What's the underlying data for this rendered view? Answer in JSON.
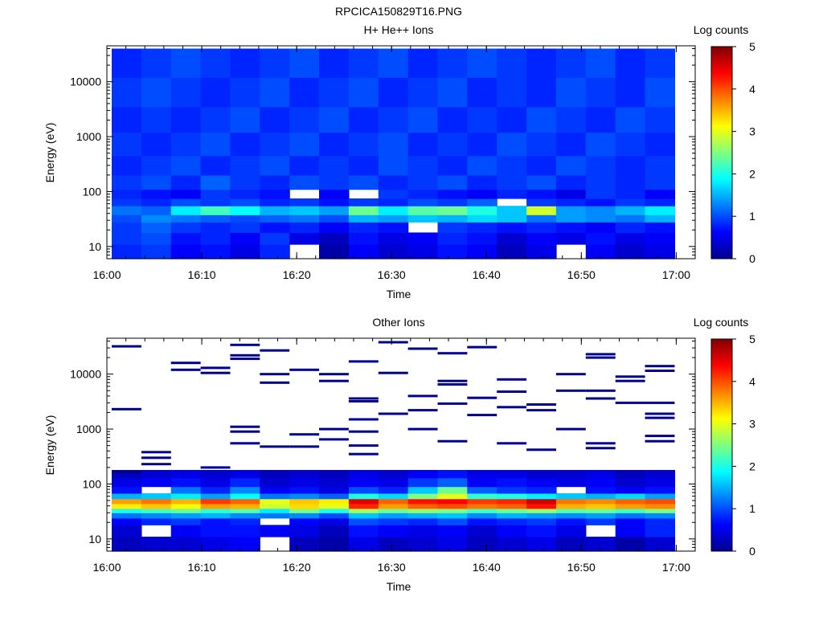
{
  "figure_title": "RPCICA150829T16.PNG",
  "chart_data": [
    {
      "type": "heatmap",
      "title": "H+ He++ Ions",
      "xlabel": "Time",
      "ylabel": "Energy (eV)",
      "x_ticks": [
        "16:00",
        "16:10",
        "16:20",
        "16:30",
        "16:40",
        "16:50",
        "17:00"
      ],
      "x_range": [
        "16:00",
        "17:02"
      ],
      "y_scale": "log",
      "y_ticks": [
        "10",
        "100",
        "1000",
        "10000"
      ],
      "y_range": [
        6,
        45000
      ],
      "colorbar": {
        "label": "Log counts",
        "ticks": [
          "0",
          "1",
          "2",
          "3",
          "4",
          "5"
        ],
        "range": [
          0,
          5
        ]
      },
      "time_bins": 19,
      "energy_bands": [
        {
          "e_low": 6,
          "e_high": 11,
          "values": [
            0.8,
            0.9,
            0.6,
            0.7,
            0.5,
            0.8,
            -1,
            0.2,
            0.6,
            0.4,
            0.5,
            0.7,
            0.6,
            0.3,
            0.5,
            -1,
            0.6,
            0.4,
            0.5
          ]
        },
        {
          "e_low": 11,
          "e_high": 18,
          "values": [
            0.9,
            1.0,
            0.7,
            0.8,
            0.6,
            0.9,
            0.5,
            0.3,
            0.7,
            0.5,
            0.6,
            0.8,
            0.7,
            0.4,
            0.6,
            0.5,
            0.7,
            0.5,
            0.6
          ]
        },
        {
          "e_low": 18,
          "e_high": 28,
          "values": [
            0.9,
            1.1,
            0.9,
            0.8,
            0.9,
            0.7,
            0.8,
            0.6,
            0.8,
            0.7,
            -1,
            0.9,
            0.8,
            0.7,
            0.8,
            0.7,
            0.6,
            0.8,
            0.7
          ]
        },
        {
          "e_low": 28,
          "e_high": 38,
          "values": [
            1.0,
            1.3,
            1.2,
            1.1,
            1.0,
            1.1,
            1.2,
            1.0,
            1.5,
            1.4,
            1.6,
            1.5,
            1.7,
            1.6,
            1.2,
            1.4,
            1.3,
            1.2,
            1.5
          ]
        },
        {
          "e_low": 38,
          "e_high": 55,
          "values": [
            1.2,
            1.1,
            1.8,
            2.2,
            1.9,
            1.5,
            1.6,
            1.4,
            2.4,
            1.8,
            2.3,
            2.4,
            2.0,
            1.6,
            2.9,
            1.4,
            1.3,
            1.5,
            1.8
          ]
        },
        {
          "e_low": 55,
          "e_high": 75,
          "values": [
            0.9,
            0.8,
            1.0,
            0.9,
            1.0,
            0.8,
            0.9,
            0.7,
            0.9,
            0.8,
            1.0,
            0.9,
            1.1,
            -1,
            0.9,
            0.8,
            0.7,
            0.9,
            0.8
          ]
        },
        {
          "e_low": 75,
          "e_high": 110,
          "values": [
            0.8,
            0.7,
            0.6,
            0.9,
            0.8,
            0.7,
            -1,
            0.6,
            -1,
            0.9,
            0.8,
            0.7,
            0.6,
            0.8,
            0.7,
            0.5,
            0.9,
            0.8,
            0.6
          ]
        },
        {
          "e_low": 110,
          "e_high": 200,
          "values": [
            0.9,
            1.0,
            0.8,
            1.1,
            0.9,
            0.8,
            1.0,
            0.9,
            1.0,
            0.8,
            0.9,
            1.0,
            0.8,
            0.9,
            1.0,
            0.8,
            0.9,
            0.8,
            0.9
          ]
        },
        {
          "e_low": 200,
          "e_high": 450,
          "values": [
            0.8,
            0.9,
            1.0,
            0.8,
            0.9,
            1.0,
            0.8,
            0.9,
            0.8,
            1.0,
            0.9,
            0.8,
            1.0,
            0.9,
            0.8,
            1.0,
            0.9,
            0.8,
            0.9
          ]
        },
        {
          "e_low": 450,
          "e_high": 1200,
          "values": [
            0.9,
            0.8,
            0.9,
            1.0,
            0.8,
            0.9,
            1.0,
            0.8,
            0.9,
            1.0,
            0.8,
            0.9,
            0.8,
            1.0,
            0.9,
            0.8,
            1.0,
            0.9,
            0.8
          ]
        },
        {
          "e_low": 1200,
          "e_high": 3500,
          "values": [
            0.8,
            0.9,
            0.8,
            0.9,
            1.0,
            0.8,
            0.9,
            1.0,
            0.8,
            0.9,
            1.0,
            0.8,
            0.9,
            0.8,
            1.0,
            0.9,
            0.8,
            1.0,
            0.9
          ]
        },
        {
          "e_low": 3500,
          "e_high": 12000,
          "values": [
            0.9,
            1.0,
            0.9,
            0.8,
            0.9,
            1.0,
            0.8,
            0.9,
            1.0,
            0.8,
            0.9,
            1.0,
            0.8,
            0.9,
            0.8,
            1.0,
            0.9,
            0.8,
            1.0
          ]
        },
        {
          "e_low": 12000,
          "e_high": 40000,
          "values": [
            0.8,
            0.9,
            1.0,
            0.9,
            0.8,
            0.9,
            1.0,
            0.8,
            0.9,
            1.0,
            0.8,
            0.9,
            1.0,
            0.9,
            0.8,
            0.9,
            1.0,
            0.8,
            0.9
          ]
        }
      ]
    },
    {
      "type": "heatmap",
      "title": "Other Ions",
      "xlabel": "Time",
      "ylabel": "Energy (eV)",
      "x_ticks": [
        "16:00",
        "16:10",
        "16:20",
        "16:30",
        "16:40",
        "16:50",
        "17:00"
      ],
      "x_range": [
        "16:00",
        "17:02"
      ],
      "y_scale": "log",
      "y_ticks": [
        "10",
        "100",
        "1000",
        "10000"
      ],
      "y_range": [
        6,
        45000
      ],
      "colorbar": {
        "label": "Log counts",
        "ticks": [
          "0",
          "1",
          "2",
          "3",
          "4",
          "5"
        ],
        "range": [
          0,
          5
        ]
      },
      "time_bins": 19,
      "energy_bands": [
        {
          "e_low": 6,
          "e_high": 11,
          "values": [
            0.3,
            0.4,
            0.4,
            0.5,
            0.6,
            -1,
            0.3,
            0.2,
            0.5,
            0.3,
            0.4,
            0.5,
            0.3,
            0.4,
            0.5,
            0.3,
            0.4,
            0.2,
            0.4
          ]
        },
        {
          "e_low": 11,
          "e_high": 18,
          "values": [
            0.4,
            -1,
            0.6,
            0.7,
            0.7,
            0.6,
            0.5,
            0.3,
            0.7,
            0.6,
            0.5,
            0.6,
            0.4,
            0.6,
            0.7,
            0.5,
            -1,
            0.6,
            0.8
          ]
        },
        {
          "e_low": 18,
          "e_high": 24,
          "values": [
            0.6,
            0.8,
            0.9,
            0.7,
            0.8,
            -1,
            0.6,
            0.5,
            1.0,
            0.9,
            0.8,
            1.0,
            0.7,
            0.8,
            0.9,
            0.7,
            0.9,
            0.6,
            0.8
          ]
        },
        {
          "e_low": 24,
          "e_high": 30,
          "values": [
            1.2,
            1.3,
            1.4,
            1.5,
            1.3,
            1.2,
            1.3,
            1.0,
            1.6,
            1.4,
            1.5,
            1.6,
            1.3,
            1.5,
            1.4,
            1.3,
            1.4,
            1.2,
            1.3
          ]
        },
        {
          "e_low": 30,
          "e_high": 36,
          "values": [
            2.0,
            2.2,
            2.4,
            2.1,
            2.3,
            1.8,
            2.5,
            2.0,
            2.7,
            2.4,
            2.6,
            2.5,
            2.2,
            2.4,
            2.6,
            2.3,
            2.4,
            2.2,
            2.5
          ]
        },
        {
          "e_low": 36,
          "e_high": 44,
          "values": [
            3.2,
            3.4,
            3.1,
            3.6,
            3.5,
            2.9,
            3.3,
            3.0,
            4.2,
            3.6,
            3.9,
            4.0,
            3.8,
            3.9,
            4.3,
            3.5,
            3.4,
            3.6,
            3.7
          ]
        },
        {
          "e_low": 44,
          "e_high": 54,
          "values": [
            3.6,
            3.8,
            3.5,
            4.1,
            3.9,
            3.0,
            3.4,
            3.2,
            4.5,
            3.9,
            4.3,
            4.4,
            4.1,
            4.2,
            4.6,
            3.8,
            3.7,
            3.9,
            4.0
          ]
        },
        {
          "e_low": 54,
          "e_high": 68,
          "values": [
            1.5,
            1.6,
            1.8,
            1.4,
            1.9,
            1.2,
            1.3,
            1.1,
            2.0,
            1.7,
            2.5,
            3.0,
            2.1,
            2.0,
            1.8,
            1.6,
            1.5,
            1.7,
            1.4
          ]
        },
        {
          "e_low": 68,
          "e_high": 90,
          "values": [
            0.7,
            -1,
            1.2,
            0.8,
            1.3,
            0.6,
            0.7,
            0.5,
            1.0,
            0.8,
            1.6,
            2.4,
            1.1,
            0.9,
            0.8,
            -1,
            0.7,
            0.6,
            0.7
          ]
        },
        {
          "e_low": 90,
          "e_high": 130,
          "values": [
            0.5,
            0.6,
            0.7,
            0.5,
            0.8,
            0.4,
            0.5,
            0.4,
            0.6,
            0.5,
            0.9,
            1.1,
            0.6,
            0.7,
            0.6,
            0.5,
            0.6,
            0.4,
            0.5
          ]
        },
        {
          "e_low": 130,
          "e_high": 180,
          "values": [
            0.3,
            0.4,
            0.5,
            0.4,
            0.5,
            0.3,
            0.4,
            0.3,
            0.5,
            0.4,
            0.6,
            0.7,
            0.5,
            0.5,
            0.4,
            0.4,
            0.5,
            0.3,
            0.4
          ]
        }
      ],
      "sparse_counts": [
        {
          "bin": 0,
          "energies": [
            165,
            2300,
            32000
          ]
        },
        {
          "bin": 1,
          "energies": [
            230,
            300,
            380
          ]
        },
        {
          "bin": 2,
          "energies": [
            12000,
            16000
          ]
        },
        {
          "bin": 3,
          "energies": [
            200,
            10500,
            13000
          ]
        },
        {
          "bin": 4,
          "energies": [
            550,
            900,
            1100,
            19000,
            22000,
            34000
          ]
        },
        {
          "bin": 5,
          "energies": [
            480,
            7000,
            10000,
            27000
          ]
        },
        {
          "bin": 6,
          "energies": [
            480,
            800,
            12000
          ]
        },
        {
          "bin": 7,
          "energies": [
            650,
            1000,
            7500,
            10000
          ]
        },
        {
          "bin": 8,
          "energies": [
            350,
            500,
            900,
            1500,
            3200,
            3600,
            17000
          ]
        },
        {
          "bin": 9,
          "energies": [
            1900,
            10500,
            38000
          ]
        },
        {
          "bin": 10,
          "energies": [
            1000,
            2200,
            4000,
            29000
          ]
        },
        {
          "bin": 11,
          "energies": [
            600,
            2900,
            6500,
            7500,
            24000
          ]
        },
        {
          "bin": 12,
          "energies": [
            1800,
            3700,
            31000
          ]
        },
        {
          "bin": 13,
          "energies": [
            550,
            2500,
            4800,
            8000
          ]
        },
        {
          "bin": 14,
          "energies": [
            420,
            2200,
            2800
          ]
        },
        {
          "bin": 15,
          "energies": [
            1000,
            5000,
            10000
          ]
        },
        {
          "bin": 16,
          "energies": [
            450,
            550,
            3600,
            5000,
            20000,
            23000
          ]
        },
        {
          "bin": 17,
          "energies": [
            3000,
            7500,
            9000
          ]
        },
        {
          "bin": 18,
          "energies": [
            600,
            750,
            1600,
            1900,
            3000,
            11500,
            14000
          ]
        }
      ]
    }
  ]
}
